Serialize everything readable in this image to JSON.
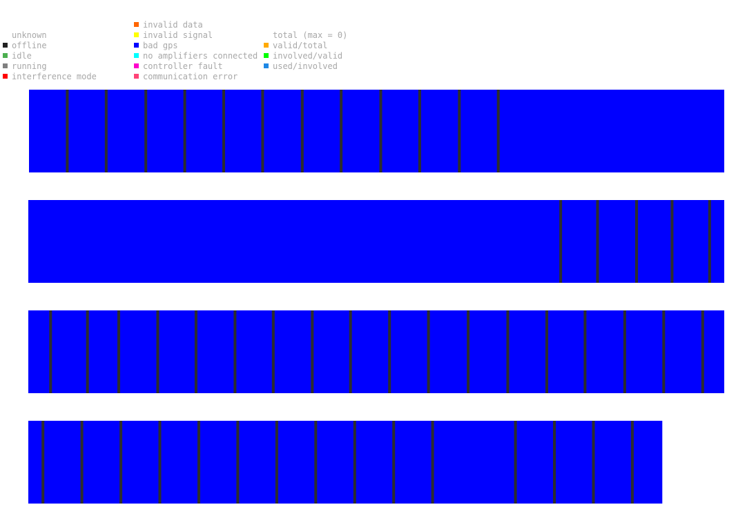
{
  "legend": {
    "status": [
      {
        "label": "unknown",
        "color": null
      },
      {
        "label": "offline",
        "color": "#222222"
      },
      {
        "label": "idle",
        "color": "#4caf50"
      },
      {
        "label": "running",
        "color": "#808080"
      },
      {
        "label": "interference mode",
        "color": "#ff0000"
      }
    ],
    "errors": [
      {
        "label": "invalid data",
        "color": "#ff6600"
      },
      {
        "label": "invalid signal",
        "color": "#ffff00"
      },
      {
        "label": "bad gps",
        "color": "#0000ff"
      },
      {
        "label": "no amplifiers connected",
        "color": "#00ffff"
      },
      {
        "label": "controller fault",
        "color": "#ff00cc"
      },
      {
        "label": "communication error",
        "color": "#ff4477"
      }
    ],
    "totals": [
      {
        "label": "total (max = 0)",
        "color": null
      },
      {
        "label": "valid/total",
        "color": "#ffaa00"
      },
      {
        "label": "involved/valid",
        "color": "#00ff00"
      },
      {
        "label": "used/involved",
        "color": "#1e88e5"
      }
    ]
  },
  "chart_data": {
    "type": "bar",
    "bar_color": "#0000ff",
    "separator_color": "#2d2d2d",
    "rows": [
      {
        "end": 1.0,
        "separators": [
          0.055,
          0.111,
          0.168,
          0.224,
          0.28,
          0.336,
          0.393,
          0.449,
          0.506,
          0.562,
          0.619,
          0.675
        ]
      },
      {
        "end": 1.0,
        "separators": [
          0.765,
          0.818,
          0.874,
          0.925,
          0.979
        ]
      },
      {
        "end": 1.0,
        "separators": [
          0.032,
          0.085,
          0.13,
          0.186,
          0.241,
          0.297,
          0.352,
          0.408,
          0.463,
          0.519,
          0.575,
          0.632,
          0.689,
          0.745,
          0.8,
          0.857,
          0.913,
          0.969
        ]
      },
      {
        "end": 0.911,
        "separators": [
          0.021,
          0.077,
          0.133,
          0.189,
          0.245,
          0.301,
          0.357,
          0.413,
          0.469,
          0.525,
          0.581,
          0.7,
          0.756,
          0.812,
          0.868
        ]
      }
    ]
  }
}
